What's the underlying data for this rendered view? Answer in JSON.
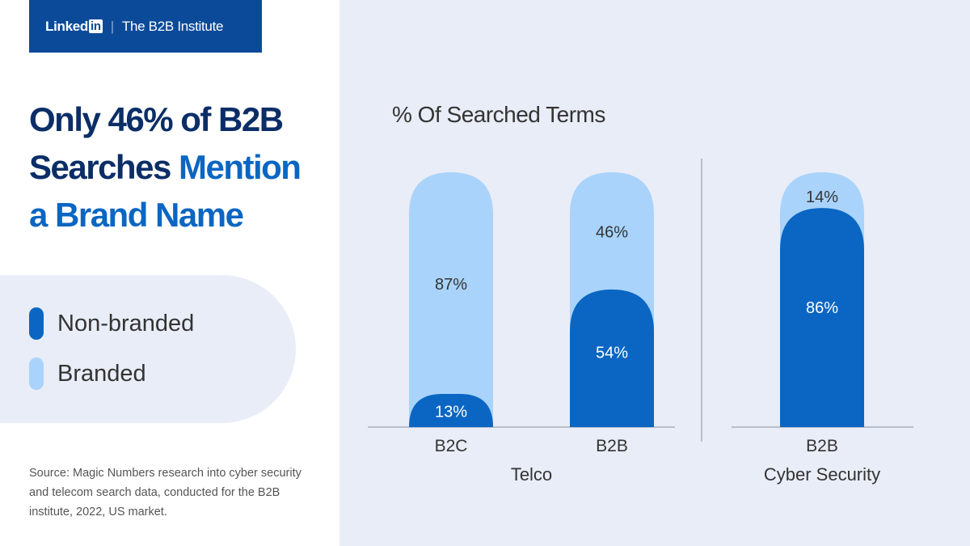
{
  "header": {
    "brand": "Linked",
    "brand_in": "in",
    "separator": "|",
    "institute": "The B2B Institute"
  },
  "title": {
    "line1": "Only 46% of B2B",
    "line2a": "Searches ",
    "line2b": "Mention",
    "line3": "a Brand Name"
  },
  "legend": [
    {
      "label": "Non-branded",
      "color": "#0a66c2"
    },
    {
      "label": "Branded",
      "color": "#a9d3fb"
    }
  ],
  "source": "Source: Magic Numbers research into cyber security and telecom search data, conducted for the B2B institute, 2022, US market.",
  "chart_data": {
    "type": "bar",
    "stacked": true,
    "title": "% Of Searched Terms",
    "ylim": [
      0,
      100
    ],
    "groups": [
      {
        "name": "Telco",
        "categories": [
          "B2C",
          "B2B"
        ]
      },
      {
        "name": "Cyber Security",
        "categories": [
          "B2B"
        ]
      }
    ],
    "categories": [
      "B2C",
      "B2B",
      "B2B"
    ],
    "series": [
      {
        "name": "Non-branded",
        "color": "#0a66c2",
        "values": [
          13,
          54,
          86
        ],
        "labels": [
          "13%",
          "54%",
          "86%"
        ]
      },
      {
        "name": "Branded",
        "color": "#a9d3fb",
        "values": [
          87,
          46,
          14
        ],
        "labels": [
          "87%",
          "46%",
          "14%"
        ]
      }
    ]
  }
}
